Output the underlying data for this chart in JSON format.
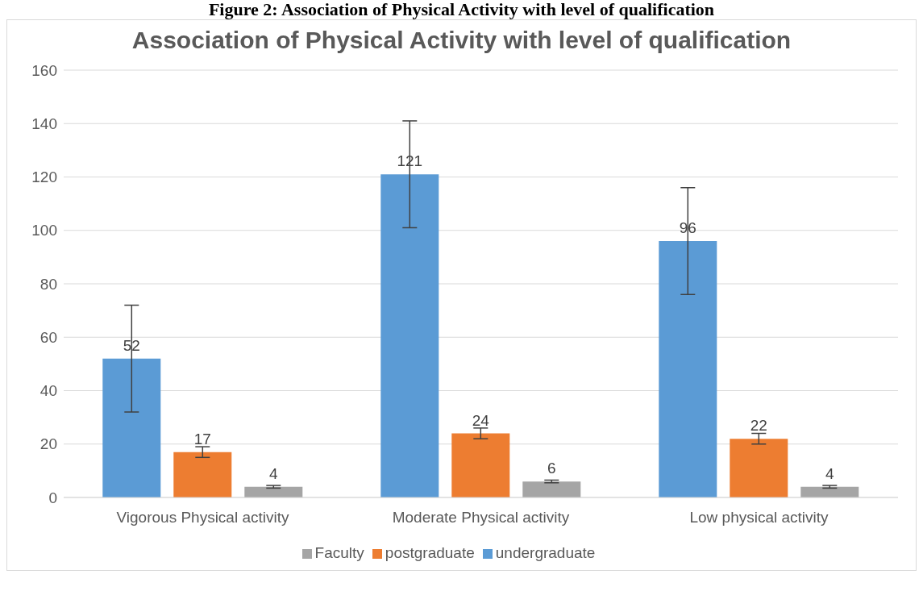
{
  "chart_data": {
    "type": "bar",
    "title": "Association of Physical Activity with level of qualification",
    "annotations": [
      "Figure 2: Association of Physical Activity with level of qualification"
    ],
    "categories": [
      "Vigorous Physical activity",
      "Moderate Physical activity",
      "Low physical activity"
    ],
    "series": [
      {
        "name": "undergraduate",
        "color": "#5b9bd5",
        "values": [
          52,
          121,
          96
        ],
        "errors": [
          20,
          20,
          20
        ]
      },
      {
        "name": "postgraduate",
        "color": "#ed7d31",
        "values": [
          17,
          24,
          22
        ],
        "errors": [
          2,
          2,
          2
        ]
      },
      {
        "name": "Faculty",
        "color": "#a5a5a5",
        "values": [
          4,
          6,
          4
        ],
        "errors": [
          0.5,
          0.5,
          0.5
        ]
      }
    ],
    "ylim": [
      0,
      160
    ],
    "yticks": [
      0,
      20,
      40,
      60,
      80,
      100,
      120,
      140,
      160
    ],
    "grid": "y",
    "legend": "bottom",
    "data_labels": true
  }
}
